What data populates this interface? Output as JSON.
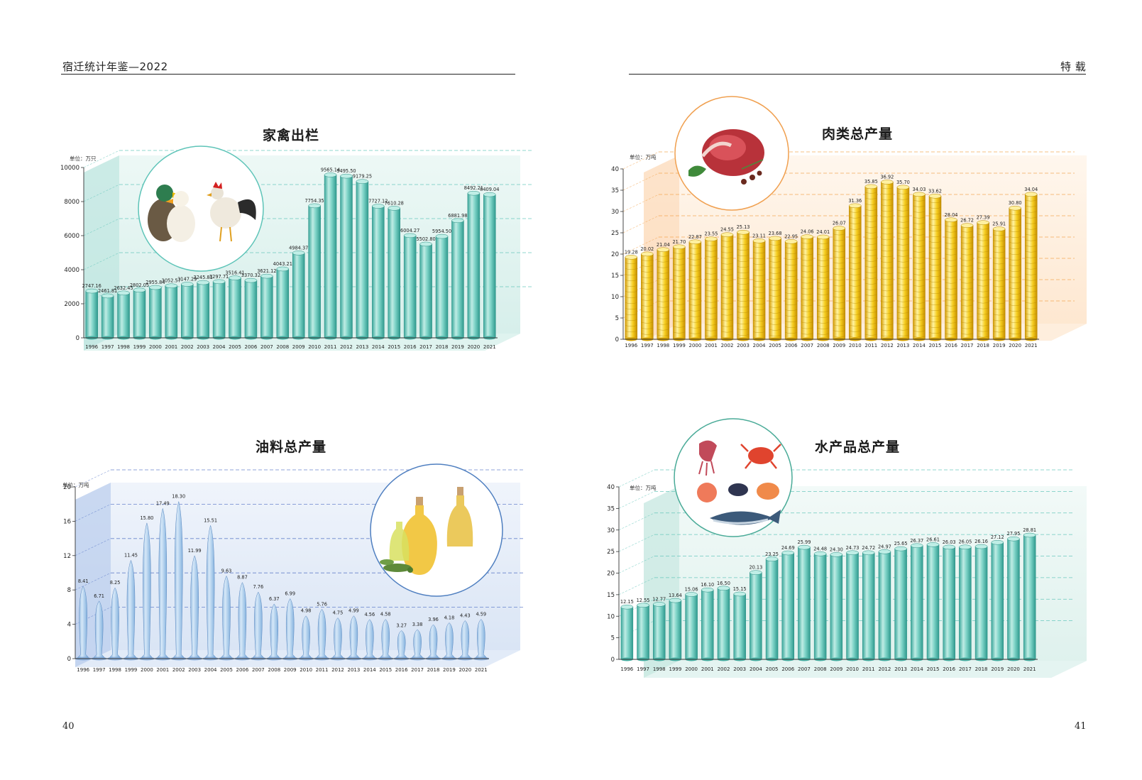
{
  "header": {
    "left_title": "宿迁统计年鉴—2022",
    "right_title": "特 载",
    "left_page": "40",
    "right_page": "41"
  },
  "chart_data": [
    {
      "id": "poultry",
      "type": "bar",
      "title": "家禽出栏",
      "unit_label": "单位：万只",
      "ylim": [
        0,
        10000
      ],
      "yticks": [
        0,
        2000,
        4000,
        6000,
        8000,
        10000
      ],
      "ytick_labels": [
        "0",
        "2000",
        "4000",
        "6000",
        "8000",
        "10000"
      ],
      "grid": true,
      "color": "#5ec4b8",
      "icon": "duck-and-rooster-photo",
      "categories": [
        "1996",
        "1997",
        "1998",
        "1999",
        "2000",
        "2001",
        "2002",
        "2003",
        "2004",
        "2005",
        "2006",
        "2007",
        "2008",
        "2009",
        "2010",
        "2011",
        "2012",
        "2013",
        "2014",
        "2015",
        "2016",
        "2017",
        "2018",
        "2019",
        "2020",
        "2021"
      ],
      "values": [
        2747.16,
        2461.81,
        2632.45,
        2802.05,
        2955.84,
        3052.57,
        3147.29,
        3245.81,
        3297.71,
        3516.41,
        3370.32,
        3621.12,
        4043.21,
        4984.37,
        7754.35,
        9565.14,
        9495.5,
        9179.25,
        7727.12,
        7610.28,
        6004.27,
        5502.8,
        5954.5,
        6881.98,
        8492.21,
        8409.04
      ],
      "labels": [
        "2747.16",
        "2461.81",
        "2632.45",
        "2802.05",
        "2955.84",
        "3052.57",
        "3147.29",
        "3245.81",
        "3297.71",
        "3516.41",
        "3370.32",
        "3621.12",
        "4043.21",
        "4984.37",
        "7754.35",
        "9565.14",
        "9495.50",
        "9179.25",
        "7727.12",
        "7610.28",
        "6004.27",
        "5502.80",
        "5954.50",
        "6881.98",
        "8492.21",
        "8409.04"
      ]
    },
    {
      "id": "meat",
      "type": "bar",
      "title": "肉类总产量",
      "unit_label": "单位：万吨",
      "ylim": [
        0,
        40
      ],
      "yticks": [
        0,
        5,
        10,
        15,
        20,
        25,
        30,
        35,
        40
      ],
      "ytick_labels": [
        "0",
        "5",
        "10",
        "15",
        "20",
        "25",
        "30",
        "35",
        "40"
      ],
      "grid": true,
      "color": "#f2c21a",
      "icon": "raw-meat-photo",
      "categories": [
        "1996",
        "1997",
        "1998",
        "1999",
        "2000",
        "2001",
        "2002",
        "2003",
        "2004",
        "2005",
        "2006",
        "2007",
        "2008",
        "2009",
        "2010",
        "2011",
        "2012",
        "2013",
        "2014",
        "2015",
        "2016",
        "2017",
        "2018",
        "2019",
        "2020",
        "2021"
      ],
      "values": [
        19.28,
        20.02,
        21.04,
        21.7,
        22.87,
        23.55,
        24.55,
        25.13,
        23.11,
        23.68,
        22.95,
        24.06,
        24.01,
        26.07,
        31.36,
        35.85,
        36.92,
        35.7,
        34.03,
        33.62,
        28.04,
        26.72,
        27.39,
        25.91,
        30.8,
        34.04
      ],
      "labels": [
        "19.28",
        "20.02",
        "21.04",
        "21.70",
        "22.87",
        "23.55",
        "24.55",
        "25.13",
        "23.11",
        "23.68",
        "22.95",
        "24.06",
        "24.01",
        "26.07",
        "31.36",
        "35.85",
        "36.92",
        "35.70",
        "34.03",
        "33.62",
        "28.04",
        "26.72",
        "27.39",
        "25.91",
        "30.80",
        "34.04"
      ]
    },
    {
      "id": "oil",
      "type": "bar",
      "title": "油料总产量",
      "unit_label": "单位：万吨",
      "ylim": [
        0,
        20
      ],
      "yticks": [
        0,
        4,
        8,
        12,
        16,
        20
      ],
      "ytick_labels": [
        "0",
        "4",
        "8",
        "12",
        "16",
        "20"
      ],
      "grid": true,
      "color": "#8fb8e0",
      "icon": "olive-oil-bottles-photo",
      "categories": [
        "1996",
        "1997",
        "1998",
        "1999",
        "2000",
        "2001",
        "2002",
        "2003",
        "2004",
        "2005",
        "2006",
        "2007",
        "2008",
        "2009",
        "2010",
        "2011",
        "2012",
        "2013",
        "2014",
        "2015",
        "2016",
        "2017",
        "2018",
        "2019",
        "2020",
        "2021"
      ],
      "values": [
        8.41,
        6.71,
        8.25,
        11.45,
        15.8,
        17.49,
        18.3,
        11.99,
        15.51,
        9.63,
        8.87,
        7.76,
        6.37,
        6.99,
        4.98,
        5.76,
        4.75,
        4.99,
        4.56,
        4.58,
        3.27,
        3.38,
        3.96,
        4.18,
        4.43,
        4.59
      ],
      "labels": [
        "8.41",
        "6.71",
        "8.25",
        "11.45",
        "15.80",
        "17.49",
        "18.30",
        "11.99",
        "15.51",
        "9.63",
        "8.87",
        "7.76",
        "6.37",
        "6.99",
        "4.98",
        "5.76",
        "4.75",
        "4.99",
        "4.56",
        "4.58",
        "3.27",
        "3.38",
        "3.96",
        "4.18",
        "4.43",
        "4.59"
      ]
    },
    {
      "id": "aquatic",
      "type": "bar",
      "title": "水产品总产量",
      "unit_label": "单位：万吨",
      "ylim": [
        0,
        40
      ],
      "yticks": [
        0,
        5,
        10,
        15,
        20,
        25,
        30,
        35,
        40
      ],
      "ytick_labels": [
        "0",
        "5",
        "10",
        "15",
        "20",
        "25",
        "30",
        "35",
        "40"
      ],
      "grid": true,
      "color": "#5ec4b8",
      "icon": "seafood-illustration",
      "categories": [
        "1996",
        "1997",
        "1998",
        "1999",
        "2000",
        "2001",
        "2002",
        "2003",
        "2004",
        "2005",
        "2006",
        "2007",
        "2008",
        "2009",
        "2010",
        "2011",
        "2012",
        "2013",
        "2014",
        "2015",
        "2016",
        "2017",
        "2018",
        "2019",
        "2020",
        "2021"
      ],
      "values": [
        12.15,
        12.55,
        12.77,
        13.64,
        15.06,
        16.1,
        16.5,
        15.15,
        20.13,
        23.25,
        24.69,
        25.99,
        24.48,
        24.3,
        24.73,
        24.72,
        24.97,
        25.65,
        26.37,
        26.61,
        26.03,
        26.05,
        26.16,
        27.12,
        27.95,
        28.81
      ],
      "labels": [
        "12.15",
        "12.55",
        "12.77",
        "13.64",
        "15.06",
        "16.10",
        "16.50",
        "15.15",
        "20.13",
        "23.25",
        "24.69",
        "25.99",
        "24.48",
        "24.30",
        "24.73",
        "24.72",
        "24.97",
        "25.65",
        "26.37",
        "26.61",
        "26.03",
        "26.05",
        "26.16",
        "27.12",
        "27.95",
        "28.81"
      ]
    }
  ]
}
